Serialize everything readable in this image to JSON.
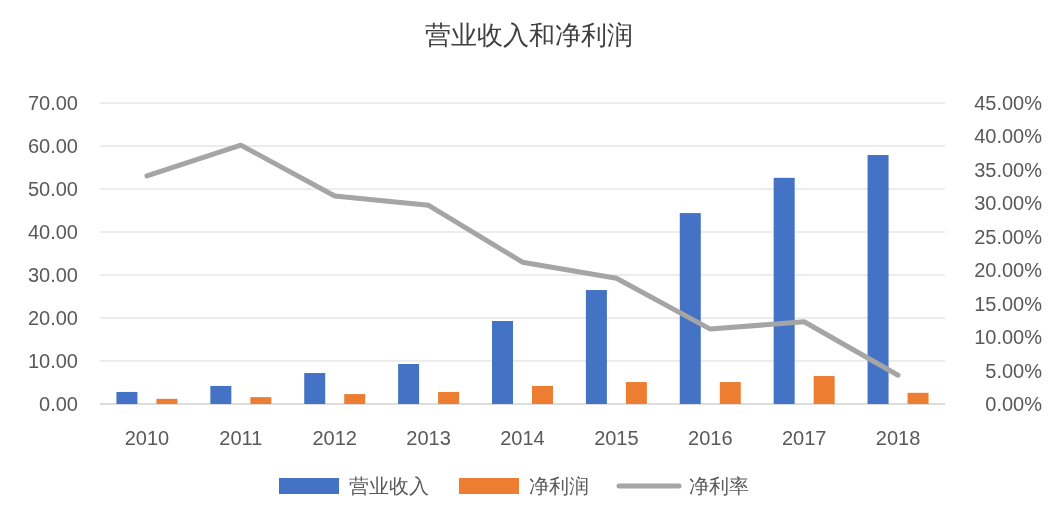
{
  "chart_data": {
    "type": "bar",
    "title": "营业收入和净利润",
    "categories": [
      "2010",
      "2011",
      "2012",
      "2013",
      "2014",
      "2015",
      "2016",
      "2017",
      "2018"
    ],
    "series": [
      {
        "name": "营业收入",
        "color": "#4472c4",
        "values": [
          2.8,
          4.2,
          7.2,
          9.3,
          19.3,
          26.5,
          44.4,
          52.6,
          57.9
        ]
      },
      {
        "name": "净利润",
        "color": "#ed7d31",
        "values": [
          1.2,
          1.6,
          2.3,
          2.8,
          4.2,
          5.1,
          5.1,
          6.5,
          2.6
        ]
      },
      {
        "name": "净利率",
        "color": "#a5a5a5",
        "type": "line",
        "axis": "y2",
        "values": [
          34.1,
          38.7,
          31.1,
          29.7,
          21.2,
          18.8,
          11.2,
          12.3,
          4.3
        ]
      }
    ],
    "ylim": [
      0,
      70
    ],
    "yticks": [
      {
        "value": 0,
        "label": "0.00"
      },
      {
        "value": 10,
        "label": "10.00"
      },
      {
        "value": 20,
        "label": "20.00"
      },
      {
        "value": 30,
        "label": "30.00"
      },
      {
        "value": 40,
        "label": "40.00"
      },
      {
        "value": 50,
        "label": "50.00"
      },
      {
        "value": 60,
        "label": "60.00"
      },
      {
        "value": 70,
        "label": "70.00"
      }
    ],
    "y2lim": [
      0,
      45
    ],
    "y2ticks": [
      {
        "value": 0,
        "label": "0.00%"
      },
      {
        "value": 5,
        "label": "5.00%"
      },
      {
        "value": 10,
        "label": "10.00%"
      },
      {
        "value": 15,
        "label": "15.00%"
      },
      {
        "value": 20,
        "label": "20.00%"
      },
      {
        "value": 25,
        "label": "25.00%"
      },
      {
        "value": 30,
        "label": "30.00%"
      },
      {
        "value": 35,
        "label": "35.00%"
      },
      {
        "value": 40,
        "label": "40.00%"
      },
      {
        "value": 45,
        "label": "45.00%"
      }
    ],
    "grid": "y",
    "legend": "bottom",
    "marker": "none",
    "line_style": "solid"
  }
}
